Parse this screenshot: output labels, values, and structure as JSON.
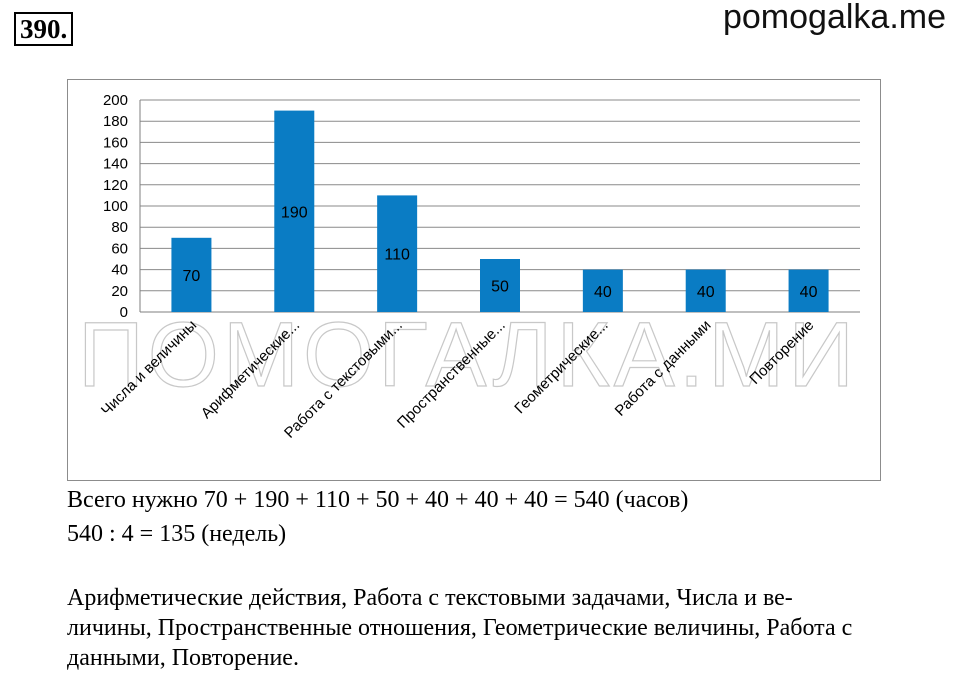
{
  "header": {
    "problem_number": "390.",
    "site": "pomogalka.me"
  },
  "watermark": {
    "text": "ПОМОГАЛКА.МИ"
  },
  "chart_data": {
    "type": "bar",
    "categories": [
      "Числа и величины",
      "Арифметические...",
      "Работа с текстовыми...",
      "Пространственные...",
      "Геометрические...",
      "Работа с данными",
      "Повторение"
    ],
    "values": [
      70,
      190,
      110,
      50,
      40,
      40,
      40
    ],
    "data_labels": [
      "70",
      "190",
      "110",
      "50",
      "40",
      "40",
      "40"
    ],
    "y_ticks": [
      0,
      20,
      40,
      60,
      80,
      100,
      120,
      140,
      160,
      180,
      200
    ],
    "ylim": [
      0,
      200
    ],
    "grid": true,
    "legend": "none",
    "bar_color": "#0a7cc4",
    "title": "",
    "xlabel": "",
    "ylabel": ""
  },
  "solution": {
    "line1": "Всего нужно 70 + 190 + 110 + 50 + 40 + 40 + 40 = 540 (часов)",
    "line2": "540 : 4 = 135 (недель)"
  },
  "answer": {
    "line1": "Арифметические действия, Работа с текстовыми задачами, Числа и ве-",
    "line2": "личины, Пространственные отношения, Геометрические величины, Работа с",
    "line3": "данными, Повторение."
  }
}
